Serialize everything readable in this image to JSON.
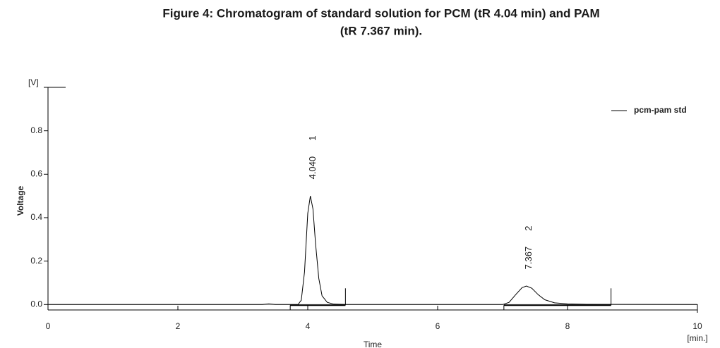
{
  "chart_data": {
    "type": "line",
    "title": "Figure 4: Chromatogram of standard solution for PCM (tR 4.04 min) and PAM",
    "subtitle": "(tR 7.367 min).",
    "x_label": "Time",
    "x_unit": "[min.]",
    "y_label": "Voltage",
    "y_unit": "[V]",
    "xlim": [
      0,
      10
    ],
    "xticks": [
      0,
      2,
      4,
      6,
      8,
      10
    ],
    "ylim": [
      -0.025,
      1.0
    ],
    "yticks": [
      {
        "value": 0,
        "label": "0.0"
      },
      {
        "value": 0.2,
        "label": "0.2"
      },
      {
        "value": 0.4,
        "label": "0.4"
      },
      {
        "value": 0.6,
        "label": "0.6"
      },
      {
        "value": 0.8,
        "label": "0.8"
      }
    ],
    "legend_position": "upper right",
    "series": [
      {
        "name": "pcm-pam std",
        "color": "#000000",
        "x": [
          0,
          3.3,
          3.4,
          3.5,
          3.85,
          3.9,
          3.95,
          4.0,
          4.04,
          4.08,
          4.12,
          4.17,
          4.22,
          4.3,
          4.4,
          4.6,
          7.0,
          7.1,
          7.2,
          7.3,
          7.367,
          7.45,
          7.55,
          7.65,
          7.8,
          8.0,
          8.3,
          10
        ],
        "values": [
          0,
          0,
          0.003,
          0,
          0,
          0.02,
          0.15,
          0.42,
          0.5,
          0.44,
          0.28,
          0.12,
          0.04,
          0.01,
          0.002,
          0,
          0,
          0.01,
          0.045,
          0.078,
          0.085,
          0.075,
          0.045,
          0.022,
          0.008,
          0.003,
          0.001,
          0
        ]
      }
    ],
    "peaks": [
      {
        "x": 4.04,
        "y": 0.5,
        "time": "4.040",
        "number": "1"
      },
      {
        "x": 7.367,
        "y": 0.085,
        "time": "7.367",
        "number": "2"
      }
    ],
    "baselines": [
      [
        3.73,
        4.58
      ],
      [
        7.02,
        8.67
      ]
    ]
  }
}
